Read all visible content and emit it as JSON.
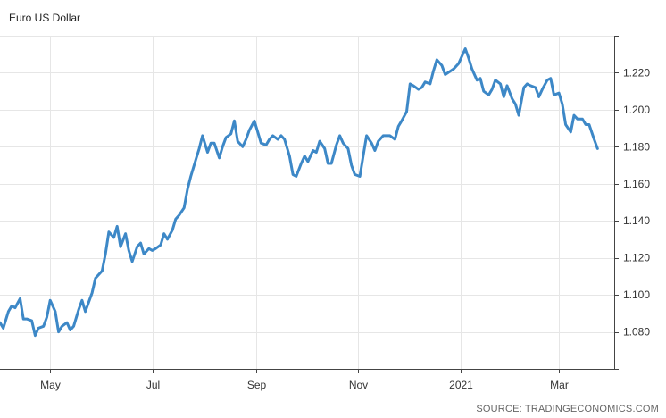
{
  "chart_data": {
    "type": "line",
    "title": "Euro US Dollar",
    "source": "SOURCE: TRADINGECONOMICS.COM",
    "xlabel": "",
    "ylabel": "",
    "ylim": [
      1.06,
      1.24
    ],
    "grid": true,
    "y_ticks": [
      "1.080",
      "1.100",
      "1.120",
      "1.140",
      "1.160",
      "1.180",
      "1.200",
      "1.220"
    ],
    "x_ticks": [
      "May",
      "Jul",
      "Sep",
      "Nov",
      "2021",
      "Mar"
    ],
    "x": [
      "2020-04-01",
      "2020-04-03",
      "2020-04-06",
      "2020-04-08",
      "2020-04-10",
      "2020-04-13",
      "2020-04-15",
      "2020-04-17",
      "2020-04-20",
      "2020-04-22",
      "2020-04-24",
      "2020-04-27",
      "2020-04-29",
      "2020-05-01",
      "2020-05-04",
      "2020-05-06",
      "2020-05-08",
      "2020-05-11",
      "2020-05-13",
      "2020-05-15",
      "2020-05-18",
      "2020-05-20",
      "2020-05-22",
      "2020-05-26",
      "2020-05-28",
      "2020-06-01",
      "2020-06-03",
      "2020-06-05",
      "2020-06-08",
      "2020-06-10",
      "2020-06-12",
      "2020-06-15",
      "2020-06-17",
      "2020-06-19",
      "2020-06-22",
      "2020-06-24",
      "2020-06-26",
      "2020-06-29",
      "2020-07-01",
      "2020-07-03",
      "2020-07-06",
      "2020-07-08",
      "2020-07-10",
      "2020-07-13",
      "2020-07-15",
      "2020-07-17",
      "2020-07-20",
      "2020-07-22",
      "2020-07-24",
      "2020-07-27",
      "2020-07-29",
      "2020-07-31",
      "2020-08-03",
      "2020-08-05",
      "2020-08-07",
      "2020-08-10",
      "2020-08-12",
      "2020-08-14",
      "2020-08-17",
      "2020-08-19",
      "2020-08-21",
      "2020-08-24",
      "2020-08-26",
      "2020-08-28",
      "2020-08-31",
      "2020-09-02",
      "2020-09-04",
      "2020-09-07",
      "2020-09-09",
      "2020-09-11",
      "2020-09-14",
      "2020-09-16",
      "2020-09-18",
      "2020-09-21",
      "2020-09-23",
      "2020-09-25",
      "2020-09-28",
      "2020-09-30",
      "2020-10-02",
      "2020-10-05",
      "2020-10-07",
      "2020-10-09",
      "2020-10-12",
      "2020-10-14",
      "2020-10-16",
      "2020-10-19",
      "2020-10-21",
      "2020-10-23",
      "2020-10-26",
      "2020-10-28",
      "2020-10-30",
      "2020-11-02",
      "2020-11-04",
      "2020-11-06",
      "2020-11-09",
      "2020-11-11",
      "2020-11-13",
      "2020-11-16",
      "2020-11-18",
      "2020-11-20",
      "2020-11-23",
      "2020-11-25",
      "2020-11-27",
      "2020-11-30",
      "2020-12-02",
      "2020-12-04",
      "2020-12-07",
      "2020-12-09",
      "2020-12-11",
      "2020-12-14",
      "2020-12-16",
      "2020-12-18",
      "2020-12-21",
      "2020-12-23",
      "2020-12-28",
      "2020-12-31",
      "2021-01-04",
      "2021-01-06",
      "2021-01-08",
      "2021-01-11",
      "2021-01-13",
      "2021-01-15",
      "2021-01-18",
      "2021-01-20",
      "2021-01-22",
      "2021-01-25",
      "2021-01-27",
      "2021-01-29",
      "2021-02-01",
      "2021-02-03",
      "2021-02-05",
      "2021-02-08",
      "2021-02-10",
      "2021-02-12",
      "2021-02-15",
      "2021-02-17",
      "2021-02-19",
      "2021-02-22",
      "2021-02-24",
      "2021-02-26",
      "2021-03-01",
      "2021-03-03",
      "2021-03-05",
      "2021-03-08",
      "2021-03-10",
      "2021-03-12",
      "2021-03-15",
      "2021-03-17",
      "2021-03-19",
      "2021-03-22",
      "2021-03-24"
    ],
    "series": [
      {
        "name": "",
        "color": "#3d88c7",
        "values": [
          1.085,
          1.082,
          1.091,
          1.094,
          1.093,
          1.098,
          1.087,
          1.087,
          1.086,
          1.078,
          1.082,
          1.083,
          1.088,
          1.097,
          1.091,
          1.08,
          1.083,
          1.085,
          1.081,
          1.083,
          1.092,
          1.097,
          1.091,
          1.101,
          1.109,
          1.113,
          1.122,
          1.134,
          1.131,
          1.137,
          1.126,
          1.133,
          1.124,
          1.118,
          1.126,
          1.128,
          1.122,
          1.125,
          1.124,
          1.125,
          1.127,
          1.133,
          1.13,
          1.135,
          1.141,
          1.143,
          1.147,
          1.157,
          1.164,
          1.173,
          1.179,
          1.186,
          1.177,
          1.182,
          1.182,
          1.174,
          1.18,
          1.185,
          1.187,
          1.194,
          1.183,
          1.18,
          1.184,
          1.189,
          1.194,
          1.188,
          1.182,
          1.181,
          1.184,
          1.186,
          1.184,
          1.186,
          1.184,
          1.175,
          1.165,
          1.164,
          1.171,
          1.175,
          1.172,
          1.178,
          1.177,
          1.183,
          1.179,
          1.171,
          1.171,
          1.181,
          1.186,
          1.182,
          1.179,
          1.17,
          1.165,
          1.164,
          1.175,
          1.186,
          1.182,
          1.178,
          1.183,
          1.186,
          1.186,
          1.186,
          1.184,
          1.191,
          1.194,
          1.199,
          1.214,
          1.213,
          1.211,
          1.212,
          1.215,
          1.214,
          1.221,
          1.227,
          1.224,
          1.219,
          1.222,
          1.225,
          1.233,
          1.228,
          1.222,
          1.216,
          1.217,
          1.21,
          1.208,
          1.211,
          1.216,
          1.214,
          1.207,
          1.213,
          1.206,
          1.203,
          1.197,
          1.212,
          1.214,
          1.213,
          1.212,
          1.207,
          1.211,
          1.216,
          1.217,
          1.208,
          1.209,
          1.203,
          1.192,
          1.188,
          1.197,
          1.195,
          1.195,
          1.192,
          1.192,
          1.184,
          1.179
        ]
      }
    ]
  }
}
